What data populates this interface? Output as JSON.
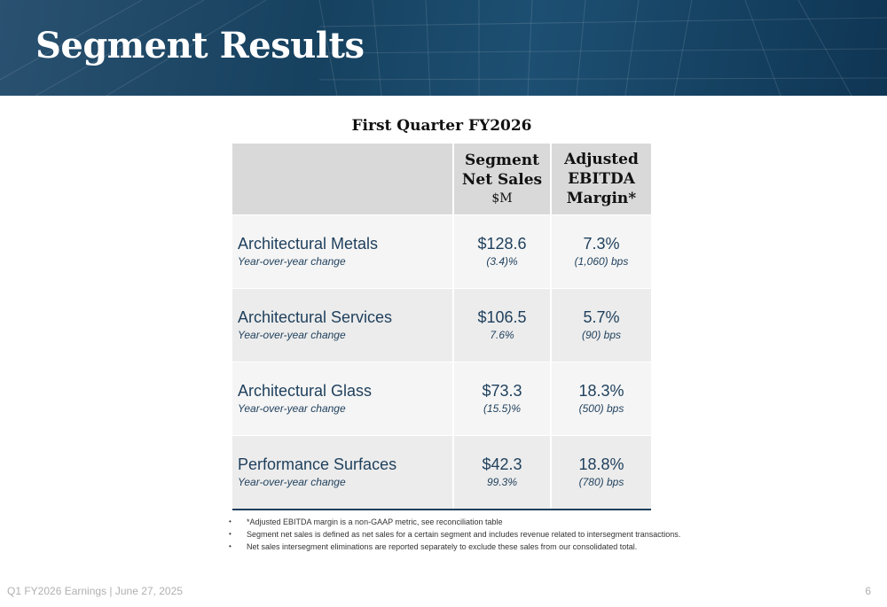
{
  "slide": {
    "title": "Segment Results"
  },
  "table": {
    "title": "First Quarter FY2026",
    "headers": {
      "sales_line1": "Segment",
      "sales_line2": "Net Sales",
      "sales_unit": "$M",
      "margin_line1": "Adjusted",
      "margin_line2": "EBITDA",
      "margin_line3": "Margin*"
    },
    "rows": [
      {
        "name": "Architectural Metals",
        "sub": "Year-over-year change",
        "sales": "$128.6",
        "sales_change": "(3.4)%",
        "margin": "7.3%",
        "margin_change": "(1,060) bps"
      },
      {
        "name": "Architectural Services",
        "sub": "Year-over-year change",
        "sales": "$106.5",
        "sales_change": "7.6%",
        "margin": "5.7%",
        "margin_change": "(90) bps"
      },
      {
        "name": "Architectural Glass",
        "sub": "Year-over-year change",
        "sales": "$73.3",
        "sales_change": "(15.5)%",
        "margin": "18.3%",
        "margin_change": "(500) bps"
      },
      {
        "name": "Performance Surfaces",
        "sub": "Year-over-year change",
        "sales": "$42.3",
        "sales_change": "99.3%",
        "margin": "18.8%",
        "margin_change": "(780) bps"
      }
    ]
  },
  "notes": [
    "*Adjusted EBITDA margin is a non-GAAP metric, see reconciliation table",
    "Segment net sales is defined as net sales for a certain segment and includes revenue related to intersegment transactions.",
    "Net sales intersegment eliminations are reported separately to exclude these sales from our consolidated total."
  ],
  "footer": {
    "text": "Q1 FY2026 Earnings  |  June 27, 2025",
    "page": "6"
  },
  "colors": {
    "banner": "#16415f",
    "text_accent": "#1e3f5c",
    "header_fill": "#d9d9d9"
  }
}
